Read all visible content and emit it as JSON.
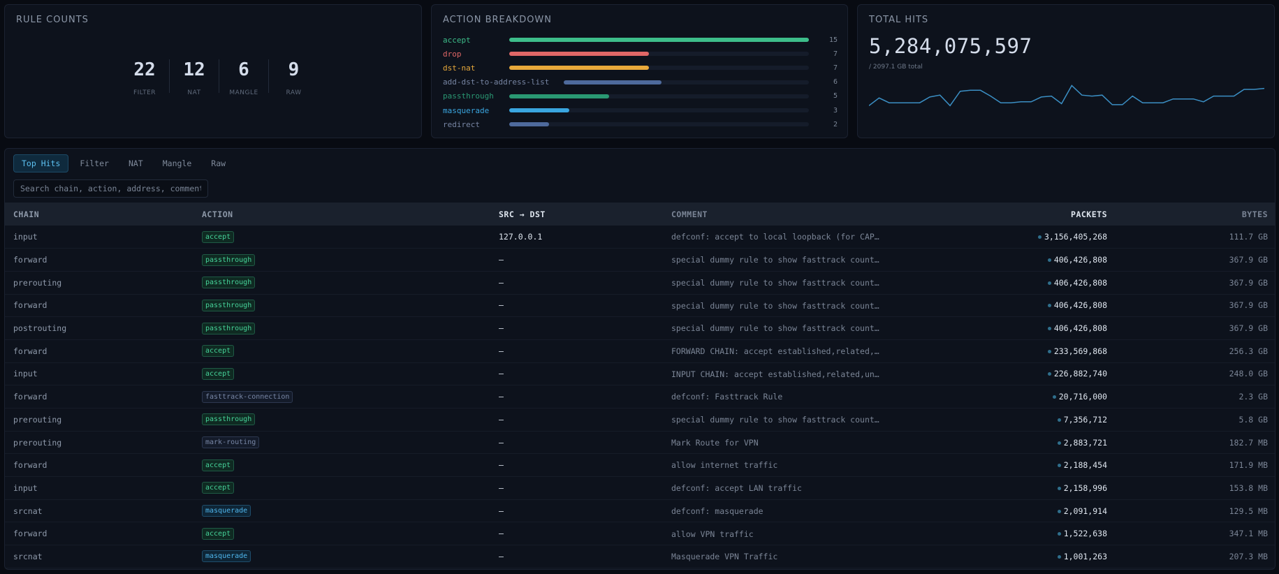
{
  "rule_counts": {
    "title": "RULE COUNTS",
    "items": [
      {
        "value": "22",
        "label": "FILTER"
      },
      {
        "value": "12",
        "label": "NAT"
      },
      {
        "value": "6",
        "label": "MANGLE"
      },
      {
        "value": "9",
        "label": "RAW"
      }
    ]
  },
  "action_breakdown": {
    "title": "ACTION BREAKDOWN",
    "max": 15,
    "items": [
      {
        "label": "accept",
        "value": 15,
        "color": "#3dbd8a"
      },
      {
        "label": "drop",
        "value": 7,
        "color": "#e06767"
      },
      {
        "label": "dst-nat",
        "value": 7,
        "color": "#e8a93b"
      },
      {
        "label": "add-dst-to-address-list",
        "value": 6,
        "color": "#4e6a9c"
      },
      {
        "label": "passthrough",
        "value": 5,
        "color": "#2a9873"
      },
      {
        "label": "masquerade",
        "value": 3,
        "color": "#3aa6e0"
      },
      {
        "label": "redirect",
        "value": 2,
        "color": "#4e6a9c"
      }
    ]
  },
  "total_hits": {
    "title": "TOTAL HITS",
    "value": "5,284,075,597",
    "subtitle": "/ 2097.1 GB total",
    "sparkline": [
      10,
      18,
      13,
      13,
      13,
      13,
      19,
      21,
      10,
      25,
      26,
      26,
      20,
      13,
      13,
      14,
      14,
      19,
      20,
      12,
      31,
      21,
      20,
      21,
      11,
      11,
      20,
      13,
      13,
      13,
      17,
      17,
      17,
      14,
      20,
      20,
      20,
      27,
      27,
      28
    ],
    "color": "#3b8fc4"
  },
  "tabs": [
    {
      "label": "Top Hits",
      "active": true
    },
    {
      "label": "Filter",
      "active": false
    },
    {
      "label": "NAT",
      "active": false
    },
    {
      "label": "Mangle",
      "active": false
    },
    {
      "label": "Raw",
      "active": false
    }
  ],
  "search": {
    "placeholder": "Search chain, action, address, comment"
  },
  "table": {
    "headers": {
      "chain": "CHAIN",
      "action": "ACTION",
      "src_dst": "SRC → DST",
      "comment": "COMMENT",
      "packets": "PACKETS",
      "bytes": "BYTES"
    },
    "rows": [
      {
        "chain": "input",
        "action": "accept",
        "src": "127.0.0.1",
        "comment": "defconf: accept to local loopback (for CAPs…",
        "packets": "3,156,405,268",
        "bytes": "111.7 GB"
      },
      {
        "chain": "forward",
        "action": "passthrough",
        "src": "—",
        "comment": "special dummy rule to show fasttrack counte…",
        "packets": "406,426,808",
        "bytes": "367.9 GB"
      },
      {
        "chain": "prerouting",
        "action": "passthrough",
        "src": "—",
        "comment": "special dummy rule to show fasttrack counte…",
        "packets": "406,426,808",
        "bytes": "367.9 GB"
      },
      {
        "chain": "forward",
        "action": "passthrough",
        "src": "—",
        "comment": "special dummy rule to show fasttrack counte…",
        "packets": "406,426,808",
        "bytes": "367.9 GB"
      },
      {
        "chain": "postrouting",
        "action": "passthrough",
        "src": "—",
        "comment": "special dummy rule to show fasttrack counte…",
        "packets": "406,426,808",
        "bytes": "367.9 GB"
      },
      {
        "chain": "forward",
        "action": "accept",
        "src": "—",
        "comment": "FORWARD CHAIN: accept established,related,u…",
        "packets": "233,569,868",
        "bytes": "256.3 GB"
      },
      {
        "chain": "input",
        "action": "accept",
        "src": "—",
        "comment": "INPUT CHAIN: accept established,related,unt…",
        "packets": "226,882,740",
        "bytes": "248.0 GB"
      },
      {
        "chain": "forward",
        "action": "fasttrack-connection",
        "src": "—",
        "comment": "defconf: Fasttrack Rule",
        "packets": "20,716,000",
        "bytes": "2.3 GB"
      },
      {
        "chain": "prerouting",
        "action": "passthrough",
        "src": "—",
        "comment": "special dummy rule to show fasttrack counte…",
        "packets": "7,356,712",
        "bytes": "5.8 GB"
      },
      {
        "chain": "prerouting",
        "action": "mark-routing",
        "src": "—",
        "comment": "Mark Route for VPN",
        "packets": "2,883,721",
        "bytes": "182.7 MB"
      },
      {
        "chain": "forward",
        "action": "accept",
        "src": "—",
        "comment": "allow internet traffic",
        "packets": "2,188,454",
        "bytes": "171.9 MB"
      },
      {
        "chain": "input",
        "action": "accept",
        "src": "—",
        "comment": "defconf: accept LAN traffic",
        "packets": "2,158,996",
        "bytes": "153.8 MB"
      },
      {
        "chain": "srcnat",
        "action": "masquerade",
        "src": "—",
        "comment": "defconf: masquerade",
        "packets": "2,091,914",
        "bytes": "129.5 MB"
      },
      {
        "chain": "forward",
        "action": "accept",
        "src": "—",
        "comment": "allow VPN traffic",
        "packets": "1,522,638",
        "bytes": "347.1 MB"
      },
      {
        "chain": "srcnat",
        "action": "masquerade",
        "src": "—",
        "comment": "Masquerade VPN Traffic",
        "packets": "1,001,263",
        "bytes": "207.3 MB"
      }
    ]
  },
  "badge_colors": {
    "accept": {
      "fg": "#46d39a",
      "bg": "#0f2a22",
      "border": "#1f5a45"
    },
    "passthrough": {
      "fg": "#46d39a",
      "bg": "#0f2a22",
      "border": "#1f5a45"
    },
    "masquerade": {
      "fg": "#4fb7ee",
      "bg": "#0e2536",
      "border": "#1f4d6b"
    },
    "fasttrack-connection": {
      "fg": "#7887a6",
      "bg": "#141b2a",
      "border": "#2d3850"
    },
    "mark-routing": {
      "fg": "#7887a6",
      "bg": "#141b2a",
      "border": "#2d3850"
    }
  }
}
